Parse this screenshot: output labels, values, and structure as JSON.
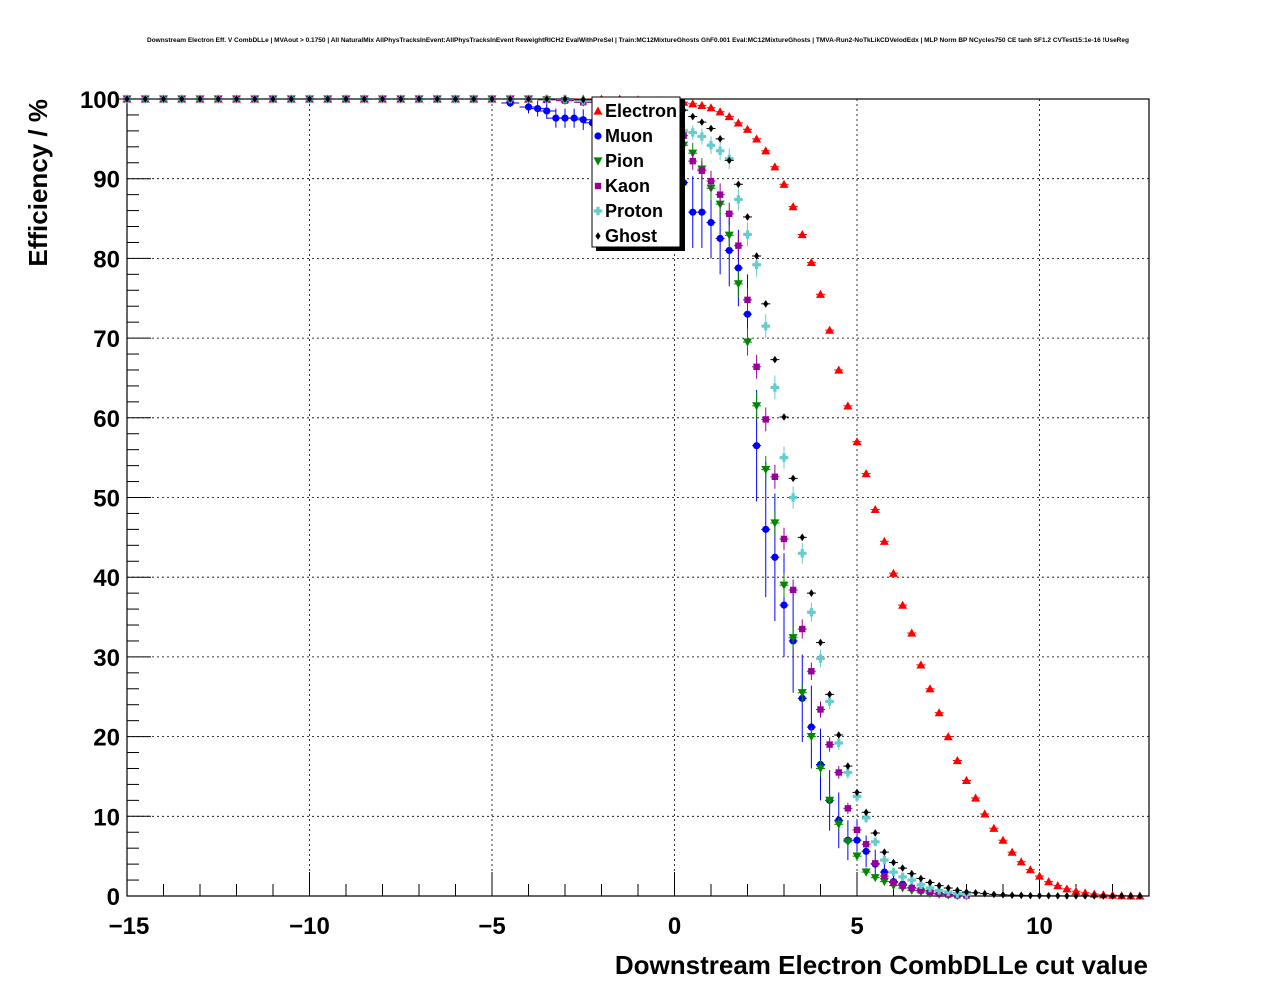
{
  "chart_data": {
    "type": "scatter",
    "title": "Downstream Electron Eff. V CombDLLe | MVAout > 0.1750 | All NaturalMix AllPhysTracksInEvent:AllPhysTracksInEvent ReweightRICH2 EvalWithPreSel | Train:MC12MixtureGhosts GhF0.001 Eval:MC12MixtureGhosts | TMVA-Run2-NoTkLikCDVelodEdx | MLP Norm BP NCycles750 CE tanh SF1.2 CVTest15:1e-16 !UseReg",
    "xlabel": "Downstream Electron CombDLLe cut value",
    "ylabel": "Efficiency / %",
    "xlim": [
      -15,
      13
    ],
    "ylim": [
      0,
      100
    ],
    "xticks": [
      -15,
      -10,
      -5,
      0,
      5,
      10
    ],
    "xtick_labels": [
      "−15",
      "−10",
      "−5",
      "0",
      "5",
      "10"
    ],
    "yticks": [
      0,
      10,
      20,
      30,
      40,
      50,
      60,
      70,
      80,
      90,
      100
    ],
    "ytick_labels": [
      "0",
      "10",
      "20",
      "30",
      "40",
      "50",
      "60",
      "70",
      "80",
      "90",
      "100"
    ],
    "grid": true,
    "legend_position": "top-center",
    "series": [
      {
        "name": "Electron",
        "color": "#ff0000",
        "marker": "triangle-up",
        "x": [
          -15,
          -14.5,
          -14,
          -13.5,
          -13,
          -12.5,
          -12,
          -11.5,
          -11,
          -10.5,
          -10,
          -9.5,
          -9,
          -8.5,
          -8,
          -7.5,
          -7,
          -6.5,
          -6,
          -5.5,
          -5,
          -4.5,
          -4,
          -3.5,
          -3,
          -2.5,
          -2,
          -1.5,
          -1,
          -0.5,
          0,
          0.25,
          0.5,
          0.75,
          1,
          1.25,
          1.5,
          1.75,
          2,
          2.25,
          2.5,
          2.75,
          3,
          3.25,
          3.5,
          3.75,
          4,
          4.25,
          4.5,
          4.75,
          5,
          5.25,
          5.5,
          5.75,
          6,
          6.25,
          6.5,
          6.75,
          7,
          7.25,
          7.5,
          7.75,
          8,
          8.25,
          8.5,
          8.75,
          9,
          9.25,
          9.5,
          9.75,
          10,
          10.25,
          10.5,
          10.75,
          11,
          11.25,
          11.5,
          11.75,
          12,
          12.25,
          12.5,
          12.75
        ],
        "y": [
          100,
          100,
          100,
          100,
          100,
          100,
          100,
          100,
          100,
          100,
          100,
          100,
          100,
          100,
          100,
          100,
          100,
          100,
          100,
          100,
          100,
          100,
          100,
          100,
          100,
          100,
          100,
          100,
          99.9,
          99.8,
          99.7,
          99.6,
          99.4,
          99.2,
          98.9,
          98.4,
          97.8,
          97,
          96.2,
          95,
          93.5,
          91.5,
          89.3,
          86.5,
          83,
          79.5,
          75.5,
          71,
          66,
          61.5,
          57,
          53,
          48.5,
          44.5,
          40.5,
          36.5,
          33,
          29,
          26,
          23,
          20,
          17,
          14.5,
          12.3,
          10.3,
          8.5,
          7,
          5.5,
          4.3,
          3.3,
          2.5,
          1.8,
          1.3,
          0.9,
          0.6,
          0.4,
          0.25,
          0.15,
          0.1,
          0.05,
          0.02,
          0.01
        ]
      },
      {
        "name": "Muon",
        "color": "#0000ff",
        "marker": "circle",
        "x": [
          -15,
          -14.5,
          -14,
          -13.5,
          -13,
          -12.5,
          -12,
          -11.5,
          -11,
          -10.5,
          -10,
          -9.5,
          -9,
          -8.5,
          -8,
          -7.5,
          -7,
          -6.5,
          -6,
          -5.5,
          -5,
          -4.5,
          -4,
          -3.75,
          -3.5,
          -3.25,
          -3,
          -2.75,
          -2.5,
          -2.25,
          -2,
          -1.75,
          -1.5,
          -1.25,
          -1,
          -0.75,
          -0.5,
          -0.25,
          0,
          0.25,
          0.5,
          0.75,
          1,
          1.25,
          1.5,
          1.75,
          2,
          2.25,
          2.5,
          2.75,
          3,
          3.25,
          3.5,
          3.75,
          4,
          4.25,
          4.5,
          4.75,
          5,
          5.25,
          5.5,
          5.75,
          6,
          6.25,
          6.5,
          6.75,
          7,
          7.25,
          7.5,
          7.75,
          8
        ],
        "y": [
          100,
          100,
          100,
          100,
          100,
          100,
          100,
          100,
          100,
          100,
          100,
          100,
          100,
          100,
          100,
          100,
          100,
          100,
          100,
          100,
          100,
          99.5,
          99,
          98.8,
          98.5,
          97.6,
          97.6,
          97.6,
          97.4,
          97,
          96.8,
          96.5,
          96.3,
          96,
          95.5,
          95,
          94.5,
          93,
          91.5,
          89.5,
          85.8,
          85.8,
          84.5,
          82.5,
          81,
          78.8,
          73,
          56.5,
          46,
          42.5,
          36.5,
          32,
          24.8,
          21.2,
          16.5,
          12,
          9.5,
          7,
          7,
          5.6,
          4,
          3,
          1.8,
          1.5,
          1,
          0.7,
          0.5,
          0.3,
          0.2,
          0.1,
          0.05
        ],
        "err": [
          0,
          0,
          0,
          0,
          0,
          0,
          0,
          0,
          0,
          0,
          0,
          0,
          0,
          0,
          0,
          0,
          0,
          0,
          0,
          0,
          0,
          0.5,
          0.8,
          1,
          1,
          1.2,
          1.2,
          1.2,
          1.3,
          1.4,
          1.5,
          1.6,
          1.7,
          1.8,
          2,
          2.2,
          2.4,
          2.6,
          3,
          3.5,
          4.5,
          4.5,
          4.5,
          4.5,
          4.5,
          4.8,
          5,
          7,
          8.5,
          8,
          6.5,
          6.5,
          5.5,
          5.2,
          4.5,
          3.8,
          3.5,
          2.5,
          2.5,
          2,
          1.8,
          1.4,
          1,
          0.8,
          0.7,
          0.5,
          0.4,
          0.3,
          0.2,
          0.1,
          0.05
        ]
      },
      {
        "name": "Pion",
        "color": "#008800",
        "marker": "triangle-down",
        "x": [
          -15,
          -14.5,
          -14,
          -13.5,
          -13,
          -12.5,
          -12,
          -11.5,
          -11,
          -10.5,
          -10,
          -9.5,
          -9,
          -8.5,
          -8,
          -7.5,
          -7,
          -6.5,
          -6,
          -5.5,
          -5,
          -4.5,
          -4,
          -3.5,
          -3,
          -2.5,
          -2,
          -1.5,
          -1,
          -0.5,
          0,
          0.25,
          0.5,
          0.75,
          1,
          1.25,
          1.5,
          1.75,
          2,
          2.25,
          2.5,
          2.75,
          3,
          3.25,
          3.5,
          3.75,
          4,
          4.25,
          4.5,
          4.75,
          5,
          5.25,
          5.5,
          5.75,
          6,
          6.25,
          6.5,
          6.75,
          7,
          7.25,
          7.5,
          7.75,
          8
        ],
        "y": [
          100,
          100,
          100,
          100,
          100,
          100,
          100,
          100,
          100,
          100,
          100,
          100,
          100,
          100,
          100,
          100,
          100,
          100,
          100,
          100,
          100,
          100,
          100,
          99.9,
          99.8,
          99.6,
          99.3,
          99,
          98.5,
          97.5,
          96.5,
          94.2,
          93.2,
          91.2,
          88.8,
          86.8,
          82.9,
          76.8,
          69.5,
          61.5,
          53.5,
          46.8,
          39,
          32.4,
          25.5,
          20,
          16,
          12,
          9,
          6.8,
          5,
          3,
          2.3,
          1.8,
          1.3,
          1,
          0.7,
          0.5,
          0.3,
          0.2,
          0.1,
          0.05,
          0.02
        ],
        "err": [
          0,
          0,
          0,
          0,
          0,
          0,
          0,
          0,
          0,
          0,
          0,
          0,
          0,
          0,
          0,
          0,
          0,
          0,
          0,
          0,
          0,
          0,
          0,
          0.1,
          0.1,
          0.2,
          0.3,
          0.4,
          0.5,
          0.7,
          1,
          1.2,
          1.3,
          1.4,
          1.5,
          1.6,
          1.6,
          1.7,
          1.7,
          1.7,
          1.7,
          1.6,
          1.5,
          1.4,
          1.2,
          1.1,
          1,
          0.9,
          0.8,
          0.7,
          0.6,
          0.5,
          0.4,
          0.3,
          0.3,
          0.2,
          0.2,
          0.1,
          0.1,
          0.05,
          0.05,
          0.02,
          0.01
        ]
      },
      {
        "name": "Kaon",
        "color": "#990099",
        "marker": "square",
        "x": [
          -15,
          -14.5,
          -14,
          -13.5,
          -13,
          -12.5,
          -12,
          -11.5,
          -11,
          -10.5,
          -10,
          -9.5,
          -9,
          -8.5,
          -8,
          -7.5,
          -7,
          -6.5,
          -6,
          -5.5,
          -5,
          -4.5,
          -4,
          -3.5,
          -3,
          -2.5,
          -2,
          -1.5,
          -1,
          -0.5,
          0,
          0.25,
          0.5,
          0.75,
          1,
          1.25,
          1.5,
          1.75,
          2,
          2.25,
          2.5,
          2.75,
          3,
          3.25,
          3.5,
          3.75,
          4,
          4.25,
          4.5,
          4.75,
          5,
          5.25,
          5.5,
          5.75,
          6,
          6.25,
          6.5,
          6.75,
          7,
          7.25,
          7.5,
          7.75,
          8
        ],
        "y": [
          100,
          100,
          100,
          100,
          100,
          100,
          100,
          100,
          100,
          100,
          100,
          100,
          100,
          100,
          100,
          100,
          100,
          100,
          100,
          100,
          100,
          100,
          100,
          99.9,
          99.8,
          99.6,
          99.4,
          99.2,
          98.8,
          98,
          97.5,
          95.4,
          92.2,
          91,
          89.7,
          88,
          85.6,
          81.6,
          74.8,
          66.4,
          59.8,
          52.6,
          44.8,
          38.4,
          33.5,
          28.2,
          23.4,
          19,
          15.5,
          11,
          8.3,
          6.5,
          4.1,
          2.5,
          1.7,
          1.3,
          1,
          0.7,
          0.5,
          0.3,
          0.2,
          0.1,
          0.05
        ],
        "err": [
          0,
          0,
          0,
          0,
          0,
          0,
          0,
          0,
          0,
          0,
          0,
          0,
          0,
          0,
          0,
          0,
          0,
          0,
          0,
          0,
          0,
          0,
          0,
          0.1,
          0.1,
          0.2,
          0.3,
          0.4,
          0.5,
          0.7,
          0.8,
          1,
          1.1,
          1.2,
          1.3,
          1.4,
          1.4,
          1.5,
          1.5,
          1.5,
          1.5,
          1.5,
          1.4,
          1.3,
          1.2,
          1.1,
          1,
          0.9,
          0.8,
          0.7,
          0.6,
          0.5,
          0.4,
          0.3,
          0.3,
          0.2,
          0.2,
          0.1,
          0.1,
          0.05,
          0.05,
          0.02,
          0.01
        ]
      },
      {
        "name": "Proton",
        "color": "#66cccc",
        "marker": "cross",
        "x": [
          -15,
          -14.5,
          -14,
          -13.5,
          -13,
          -12.5,
          -12,
          -11.5,
          -11,
          -10.5,
          -10,
          -9.5,
          -9,
          -8.5,
          -8,
          -7.5,
          -7,
          -6.5,
          -6,
          -5.5,
          -5,
          -4.5,
          -4,
          -3.5,
          -3,
          -2.5,
          -2,
          -1.5,
          -1,
          -0.5,
          0,
          0.25,
          0.5,
          0.75,
          1,
          1.25,
          1.5,
          1.75,
          2,
          2.25,
          2.5,
          2.75,
          3,
          3.25,
          3.5,
          3.75,
          4,
          4.25,
          4.5,
          4.75,
          5,
          5.25,
          5.5,
          5.75,
          6,
          6.25,
          6.5,
          6.75,
          7,
          7.25,
          7.5,
          7.75,
          8
        ],
        "y": [
          100,
          100,
          100,
          100,
          100,
          100,
          100,
          100,
          100,
          100,
          100,
          100,
          100,
          100,
          100,
          100,
          100,
          100,
          100,
          100,
          100,
          100,
          100,
          100,
          100,
          99.8,
          99.6,
          99.4,
          99.1,
          98.6,
          97.5,
          96,
          95.8,
          95.3,
          94.2,
          93.5,
          92.5,
          87.4,
          83,
          79.2,
          71.5,
          63.8,
          55,
          50,
          43,
          35.6,
          29.8,
          24.4,
          19.2,
          15.5,
          12.5,
          9.8,
          6.8,
          4.5,
          3,
          2.4,
          2,
          1.4,
          1,
          0.7,
          0.5,
          0.3,
          0.2
        ],
        "err": [
          0,
          0,
          0,
          0,
          0,
          0,
          0,
          0,
          0,
          0,
          0,
          0,
          0,
          0,
          0,
          0,
          0,
          0,
          0,
          0,
          0,
          0,
          0,
          0,
          0,
          0.2,
          0.3,
          0.4,
          0.5,
          0.6,
          0.7,
          0.8,
          0.9,
          1,
          1.1,
          1.2,
          1.3,
          1.4,
          1.5,
          1.5,
          1.5,
          1.5,
          1.4,
          1.4,
          1.3,
          1.2,
          1.1,
          1,
          0.9,
          0.8,
          0.7,
          0.6,
          0.5,
          0.4,
          0.3,
          0.3,
          0.2,
          0.2,
          0.1,
          0.1,
          0.05,
          0.05,
          0.02
        ]
      },
      {
        "name": "Ghost",
        "color": "#000000",
        "marker": "diamond",
        "x": [
          -15,
          -14.5,
          -14,
          -13.5,
          -13,
          -12.5,
          -12,
          -11.5,
          -11,
          -10.5,
          -10,
          -9.5,
          -9,
          -8.5,
          -8,
          -7.5,
          -7,
          -6.5,
          -6,
          -5.5,
          -5,
          -4.5,
          -4,
          -3.5,
          -3,
          -2.5,
          -2,
          -1.5,
          -1,
          -0.5,
          0,
          0.25,
          0.5,
          0.75,
          1,
          1.25,
          1.5,
          1.75,
          2,
          2.25,
          2.5,
          2.75,
          3,
          3.25,
          3.5,
          3.75,
          4,
          4.25,
          4.5,
          4.75,
          5,
          5.25,
          5.5,
          5.75,
          6,
          6.25,
          6.5,
          6.75,
          7,
          7.25,
          7.5,
          7.75,
          8,
          8.25,
          8.5,
          8.75,
          9,
          9.25,
          9.5,
          9.75,
          10,
          10.25,
          10.5,
          10.75,
          11,
          11.25,
          11.5,
          11.75,
          12,
          12.25,
          12.5,
          12.75
        ],
        "y": [
          100,
          100,
          100,
          100,
          100,
          100,
          100,
          100,
          100,
          100,
          100,
          100,
          100,
          100,
          100,
          100,
          100,
          100,
          100,
          100,
          100,
          100,
          100,
          100,
          100,
          99.9,
          99.8,
          99.6,
          99.4,
          99.2,
          99,
          98.6,
          97.8,
          97.1,
          96.3,
          95,
          92.3,
          89.3,
          85.2,
          80.3,
          74.3,
          67.3,
          60.1,
          52.4,
          45,
          38,
          31.8,
          25.3,
          20.2,
          16.3,
          13,
          10.5,
          7.9,
          5.5,
          4.2,
          3.5,
          2.8,
          2.2,
          1.7,
          1.3,
          1,
          0.7,
          0.5,
          0.4,
          0.3,
          0.2,
          0.15,
          0.1,
          0.08,
          0.05,
          0.04,
          0.03,
          0.02,
          0.01,
          0.01,
          0,
          0,
          0,
          0,
          0,
          0,
          0
        ]
      }
    ]
  }
}
